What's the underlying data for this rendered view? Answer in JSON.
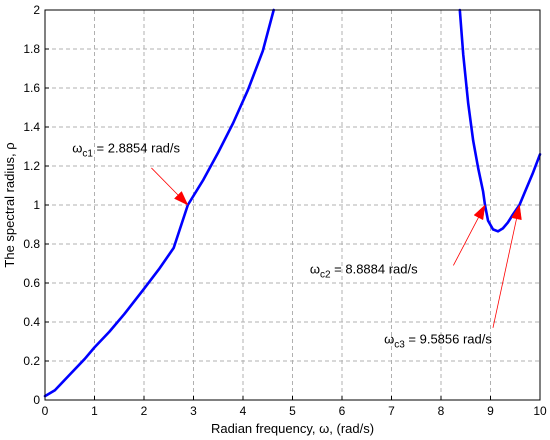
{
  "chart_data": {
    "type": "line",
    "xlabel": "Radian frequency, ω, (rad/s)",
    "ylabel": "The spectral radius, ρ",
    "xlim": [
      0,
      10
    ],
    "ylim": [
      0,
      2
    ],
    "grid": true,
    "x_ticks": [
      "0",
      "1",
      "2",
      "3",
      "4",
      "5",
      "6",
      "7",
      "8",
      "9",
      "10"
    ],
    "y_ticks": [
      "0",
      "0.2",
      "0.4",
      "0.6",
      "0.8",
      "1",
      "1.2",
      "1.4",
      "1.6",
      "1.8",
      "2"
    ],
    "line_color": "#0000ff",
    "annotation_color": "#ff0000",
    "series": [
      {
        "segments": [
          {
            "x": [
              0,
              0.2,
              0.5,
              0.8,
              1.0,
              1.3,
              1.6,
              2.0,
              2.3,
              2.6,
              2.8854,
              3.2,
              3.5,
              3.8,
              4.1,
              4.4,
              4.62
            ],
            "y": [
              0.02,
              0.05,
              0.13,
              0.21,
              0.27,
              0.35,
              0.44,
              0.57,
              0.67,
              0.78,
              1.0,
              1.13,
              1.27,
              1.42,
              1.59,
              1.79,
              2.0
            ]
          },
          {
            "x": [
              8.38,
              8.45,
              8.55,
              8.65,
              8.75,
              8.85,
              8.8884,
              8.95,
              9.05,
              9.15,
              9.25,
              9.35,
              9.45,
              9.5856,
              9.7,
              9.85,
              10.0
            ],
            "y": [
              2.0,
              1.77,
              1.52,
              1.33,
              1.19,
              1.07,
              1.0,
              0.92,
              0.875,
              0.865,
              0.88,
              0.91,
              0.95,
              1.0,
              1.07,
              1.16,
              1.26
            ]
          }
        ]
      }
    ],
    "annotations": [
      {
        "main": "ω",
        "sub": "c1",
        "rest": " = 2.8854 rad/s",
        "text_x": 0.55,
        "text_y": 1.27,
        "arrow_from": [
          2.15,
          1.19
        ],
        "arrow_to": [
          2.8854,
          1.0
        ]
      },
      {
        "main": "ω",
        "sub": "c2",
        "rest": " = 8.8884 rad/s",
        "text_x": 5.35,
        "text_y": 0.65,
        "arrow_from": [
          8.25,
          0.69
        ],
        "arrow_to": [
          8.8884,
          1.0
        ]
      },
      {
        "main": "ω",
        "sub": "c3",
        "rest": " = 9.5856 rad/s",
        "text_x": 6.85,
        "text_y": 0.29,
        "arrow_from": [
          9.05,
          0.37
        ],
        "arrow_to": [
          9.5856,
          1.0
        ]
      }
    ]
  }
}
